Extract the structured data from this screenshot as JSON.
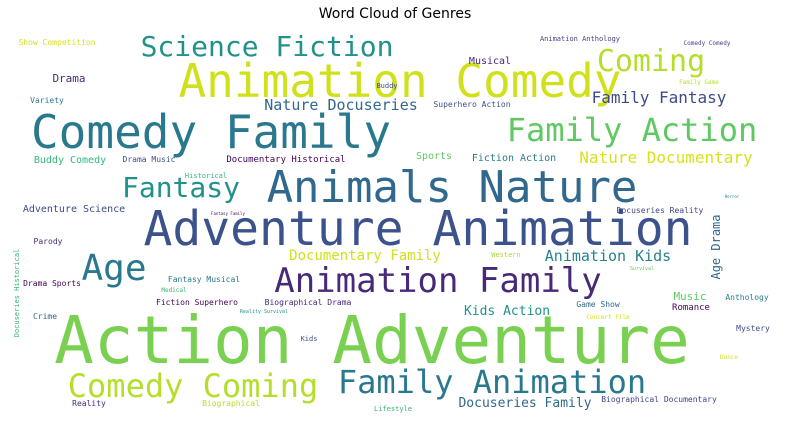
{
  "chart_data": {
    "type": "wordcloud",
    "title": "Word Cloud of Genres",
    "words": [
      {
        "text": "Action Adventure",
        "weight": 1.0,
        "color": "#7ad151"
      },
      {
        "text": "Adventure Animation",
        "weight": 0.83,
        "color": "#3b528b"
      },
      {
        "text": "Animation Comedy",
        "weight": 0.78,
        "color": "#d0e11c"
      },
      {
        "text": "Comedy Family",
        "weight": 0.76,
        "color": "#2a788e"
      },
      {
        "text": "Animals Nature",
        "weight": 0.73,
        "color": "#31688e"
      },
      {
        "text": "Animation Family",
        "weight": 0.58,
        "color": "#482878"
      },
      {
        "text": "Family Animation",
        "weight": 0.55,
        "color": "#2a788e"
      },
      {
        "text": "Comedy Coming",
        "weight": 0.55,
        "color": "#b5de2b"
      },
      {
        "text": "Family Action",
        "weight": 0.53,
        "color": "#5ec962"
      },
      {
        "text": "Age",
        "weight": 0.6,
        "color": "#2a788e"
      },
      {
        "text": "Science Fiction",
        "weight": 0.5,
        "color": "#21918c"
      },
      {
        "text": "Fantasy",
        "weight": 0.47,
        "color": "#21918c"
      },
      {
        "text": "Coming",
        "weight": 0.52,
        "color": "#b5de2b"
      },
      {
        "text": "Nature Docuseries",
        "weight": 0.27,
        "color": "#31688e"
      },
      {
        "text": "Family Fantasy",
        "weight": 0.27,
        "color": "#3e4a89"
      },
      {
        "text": "Nature Documentary",
        "weight": 0.3,
        "color": "#d8e219"
      },
      {
        "text": "Documentary Family",
        "weight": 0.27,
        "color": "#d0e11c"
      },
      {
        "text": "Animation Kids",
        "weight": 0.27,
        "color": "#26828e"
      },
      {
        "text": "Docuseries Family",
        "weight": 0.24,
        "color": "#31688e"
      },
      {
        "text": "Kids Action",
        "weight": 0.22,
        "color": "#21918c"
      },
      {
        "text": "Age Drama",
        "weight": 0.21,
        "color": "#31688e"
      },
      {
        "text": "Buddy Comedy",
        "weight": 0.17,
        "color": "#35b779"
      },
      {
        "text": "Adventure Science",
        "weight": 0.16,
        "color": "#3e4a89"
      },
      {
        "text": "Fiction Action",
        "weight": 0.16,
        "color": "#2a788e"
      },
      {
        "text": "Drama",
        "weight": 0.18,
        "color": "#482878"
      },
      {
        "text": "Musical",
        "weight": 0.16,
        "color": "#482878"
      },
      {
        "text": "Sports",
        "weight": 0.16,
        "color": "#5ec962"
      },
      {
        "text": "Music",
        "weight": 0.16,
        "color": "#5ec962"
      },
      {
        "text": "Documentary Historical",
        "weight": 0.13,
        "color": "#440154"
      },
      {
        "text": "Superhero Action",
        "weight": 0.12,
        "color": "#3b528b"
      },
      {
        "text": "Fantasy Musical",
        "weight": 0.12,
        "color": "#2a788e"
      },
      {
        "text": "Fiction Superhero",
        "weight": 0.13,
        "color": "#440154"
      },
      {
        "text": "Biographical Drama",
        "weight": 0.13,
        "color": "#482878"
      },
      {
        "text": "Docuseries Reality",
        "weight": 0.12,
        "color": "#414487"
      },
      {
        "text": "Game Show",
        "weight": 0.12,
        "color": "#31688e"
      },
      {
        "text": "Romance",
        "weight": 0.13,
        "color": "#440154"
      },
      {
        "text": "Anthology",
        "weight": 0.12,
        "color": "#26828e"
      },
      {
        "text": "Mystery",
        "weight": 0.12,
        "color": "#3e4a89"
      },
      {
        "text": "Drama Music",
        "weight": 0.11,
        "color": "#3b528b"
      },
      {
        "text": "Historical",
        "weight": 0.11,
        "color": "#35b779"
      },
      {
        "text": "Buddy",
        "weight": 0.11,
        "color": "#3e4a89"
      },
      {
        "text": "Parody",
        "weight": 0.12,
        "color": "#482878"
      },
      {
        "text": "Drama Sports",
        "weight": 0.11,
        "color": "#440154"
      },
      {
        "text": "Docuseries Historical",
        "weight": 0.1,
        "color": "#35b779"
      },
      {
        "text": "Crime",
        "weight": 0.11,
        "color": "#31688e"
      },
      {
        "text": "Kids",
        "weight": 0.11,
        "color": "#3b528b"
      },
      {
        "text": "Animation Anthology",
        "weight": 0.11,
        "color": "#414487"
      },
      {
        "text": "Comedy Comedy",
        "weight": 0.09,
        "color": "#414487"
      },
      {
        "text": "Family Game",
        "weight": 0.09,
        "color": "#b5de2b"
      },
      {
        "text": "Show Competition",
        "weight": 0.11,
        "color": "#d8e219"
      },
      {
        "text": "Variety",
        "weight": 0.11,
        "color": "#2a788e"
      },
      {
        "text": "Biographical Documentary",
        "weight": 0.11,
        "color": "#414487"
      },
      {
        "text": "Biographical",
        "weight": 0.11,
        "color": "#b5de2b"
      },
      {
        "text": "Reality",
        "weight": 0.11,
        "color": "#482878"
      },
      {
        "text": "Lifestyle",
        "weight": 0.11,
        "color": "#35b779"
      },
      {
        "text": "Concert Film",
        "weight": 0.09,
        "color": "#d8e219"
      },
      {
        "text": "Western",
        "weight": 0.09,
        "color": "#addc30"
      },
      {
        "text": "Medical",
        "weight": 0.08,
        "color": "#35b779"
      },
      {
        "text": "Survival",
        "weight": 0.07,
        "color": "#5ec962"
      },
      {
        "text": "Dance",
        "weight": 0.08,
        "color": "#d8e219"
      },
      {
        "text": "Reality Survival",
        "weight": 0.06,
        "color": "#21918c"
      },
      {
        "text": "Fantasy Family",
        "weight": 0.05,
        "color": "#440154"
      },
      {
        "text": "Horror",
        "weight": 0.05,
        "color": "#26828e"
      }
    ]
  }
}
